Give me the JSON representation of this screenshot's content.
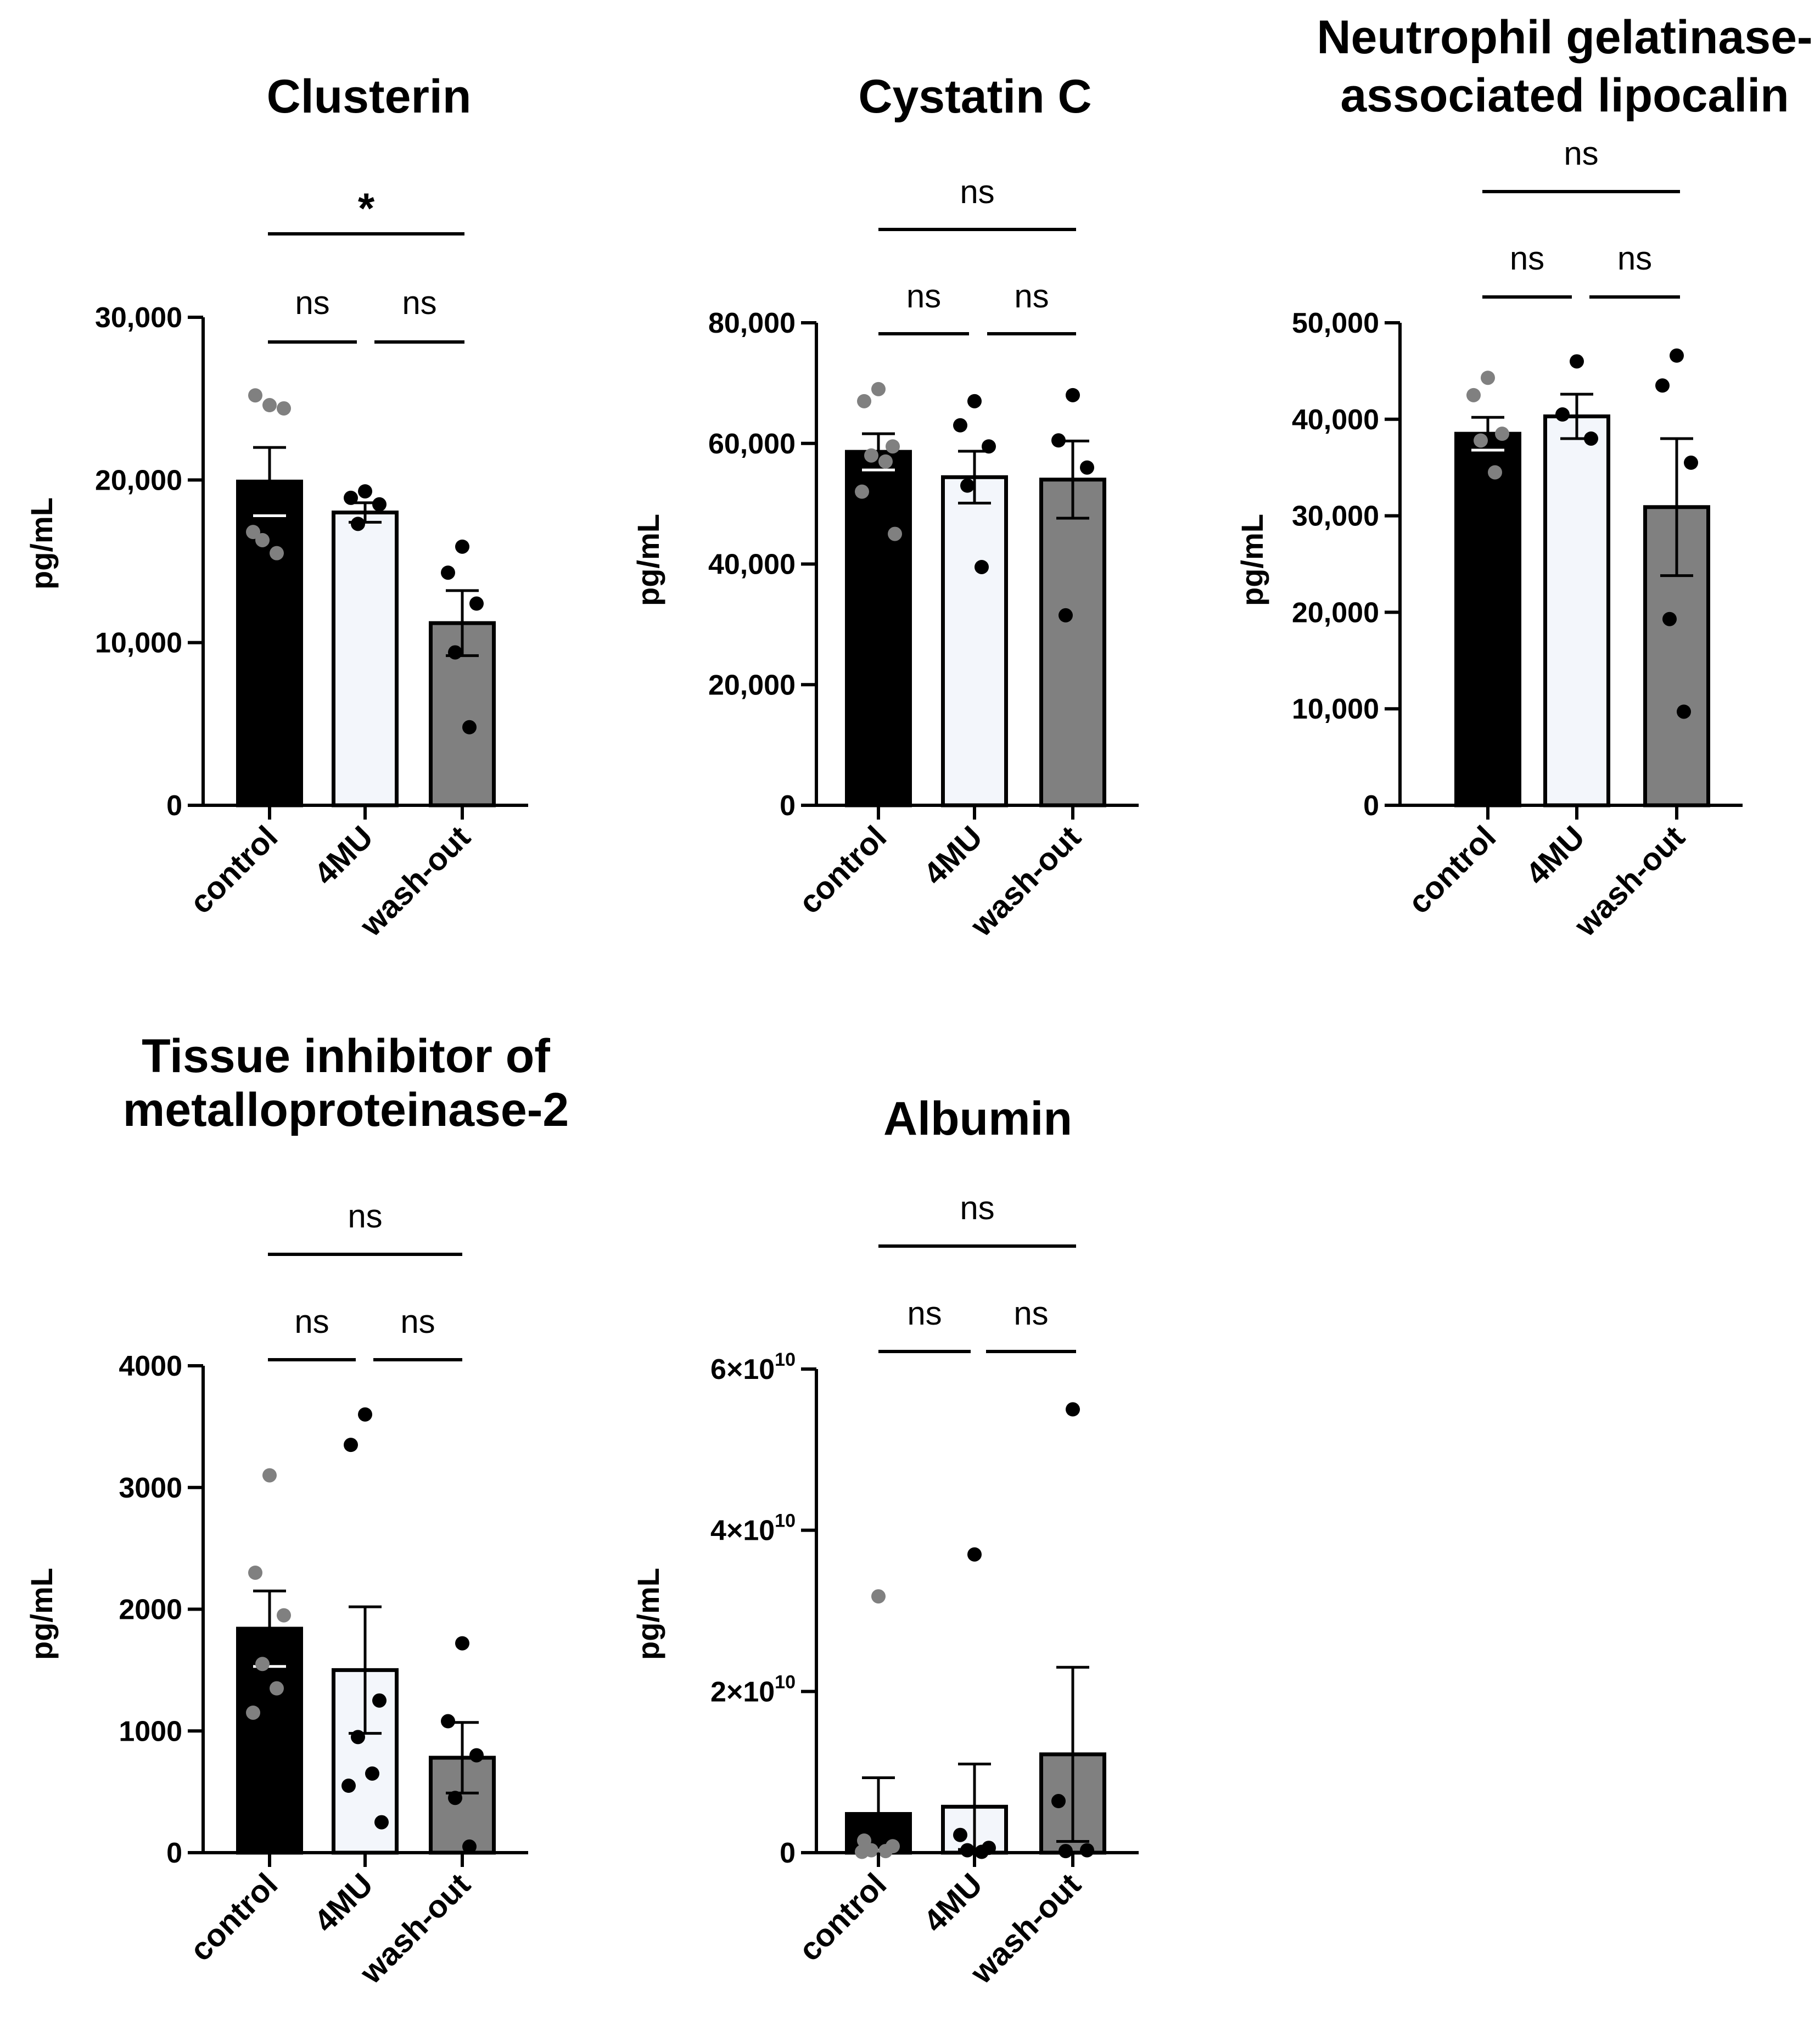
{
  "figure": {
    "colors": {
      "control": "#000000",
      "4MU": "#f3f6fb",
      "wash-out": "#808080",
      "control_points": "#808080",
      "other_points": "#000000"
    }
  },
  "chart_data": [
    {
      "type": "bar",
      "title": "Clusterin",
      "title_lines": [
        "Clusterin"
      ],
      "ylabel": "pg/mL",
      "categories": [
        "control",
        "4MU",
        "wash-out"
      ],
      "ylim": [
        0,
        30000
      ],
      "yticks": [
        0,
        10000,
        20000,
        30000
      ],
      "ytick_labels": [
        "0",
        "10,000",
        "20,000",
        "30,000"
      ],
      "values": [
        19900,
        18000,
        11200
      ],
      "sem": [
        2100,
        600,
        2000
      ],
      "points": [
        [
          24600,
          25200,
          24400,
          16300,
          15500,
          16800
        ],
        [
          19300,
          18900,
          18500,
          17300
        ],
        [
          15900,
          14300,
          12400,
          9400,
          4800
        ]
      ],
      "comparisons": [
        {
          "groups": [
            0,
            1
          ],
          "label": "ns"
        },
        {
          "groups": [
            1,
            2
          ],
          "label": "ns"
        },
        {
          "groups": [
            0,
            2
          ],
          "label": "*"
        }
      ]
    },
    {
      "type": "bar",
      "title": "Cystatin C",
      "title_lines": [
        "Cystatin C"
      ],
      "ylabel": "pg/mL",
      "categories": [
        "control",
        "4MU",
        "wash-out"
      ],
      "ylim": [
        0,
        80000
      ],
      "yticks": [
        0,
        20000,
        40000,
        60000,
        80000
      ],
      "ytick_labels": [
        "0",
        "20,000",
        "40,000",
        "60,000",
        "80,000"
      ],
      "values": [
        58600,
        54400,
        54000
      ],
      "sem": [
        3000,
        4300,
        6400
      ],
      "points": [
        [
          69000,
          67000,
          59500,
          58000,
          57000,
          52000,
          45000
        ],
        [
          67000,
          63000,
          59500,
          53000,
          39500
        ],
        [
          68000,
          60500,
          56000,
          31500
        ]
      ],
      "comparisons": [
        {
          "groups": [
            0,
            1
          ],
          "label": "ns"
        },
        {
          "groups": [
            1,
            2
          ],
          "label": "ns"
        },
        {
          "groups": [
            0,
            2
          ],
          "label": "ns"
        }
      ]
    },
    {
      "type": "bar",
      "title": "Neutrophil gelatinase-associated lipocalin",
      "title_lines": [
        "Neutrophil gelatinase-",
        "associated lipocalin"
      ],
      "ylabel": "pg/mL",
      "categories": [
        "control",
        "4MU",
        "wash-out"
      ],
      "ylim": [
        0,
        50000
      ],
      "yticks": [
        0,
        10000,
        20000,
        30000,
        40000,
        50000
      ],
      "ytick_labels": [
        "0",
        "10,000",
        "20,000",
        "30,000",
        "40,000",
        "50,000"
      ],
      "values": [
        38500,
        40300,
        30900
      ],
      "sem": [
        1700,
        2300,
        7100
      ],
      "points": [
        [
          44300,
          42500,
          38500,
          37800,
          34500
        ],
        [
          46000,
          40500,
          38000
        ],
        [
          46600,
          43500,
          35500,
          19300,
          9700
        ]
      ],
      "comparisons": [
        {
          "groups": [
            0,
            1
          ],
          "label": "ns"
        },
        {
          "groups": [
            1,
            2
          ],
          "label": "ns"
        },
        {
          "groups": [
            0,
            2
          ],
          "label": "ns"
        }
      ]
    },
    {
      "type": "bar",
      "title": "Tissue inhibitor of metalloproteinase-2",
      "title_lines": [
        "Tissue inhibitor of",
        "metalloproteinase-2"
      ],
      "ylabel": "pg/mL",
      "categories": [
        "control",
        "4MU",
        "wash-out"
      ],
      "ylim": [
        0,
        4000
      ],
      "yticks": [
        0,
        1000,
        2000,
        3000,
        4000
      ],
      "ytick_labels": [
        "0",
        "1000",
        "2000",
        "3000",
        "4000"
      ],
      "values": [
        1840,
        1500,
        780
      ],
      "sem": [
        310,
        520,
        290
      ],
      "points": [
        [
          3100,
          2300,
          1950,
          1550,
          1350,
          1150
        ],
        [
          3600,
          3350,
          1250,
          950,
          650,
          550,
          250
        ],
        [
          1720,
          1080,
          800,
          450,
          50
        ]
      ],
      "comparisons": [
        {
          "groups": [
            0,
            1
          ],
          "label": "ns"
        },
        {
          "groups": [
            1,
            2
          ],
          "label": "ns"
        },
        {
          "groups": [
            0,
            2
          ],
          "label": "ns"
        }
      ]
    },
    {
      "type": "bar",
      "title": "Albumin",
      "title_lines": [
        "Albumin"
      ],
      "ylabel": "pg/mL",
      "categories": [
        "control",
        "4MU",
        "wash-out"
      ],
      "ylim": [
        0,
        60000000000
      ],
      "yticks": [
        0,
        20000000000,
        40000000000,
        60000000000
      ],
      "ytick_labels": [
        "0",
        "2×10",
        "4×10",
        "6×10"
      ],
      "ytick_exponents": [
        "",
        "10",
        "10",
        "10"
      ],
      "values": [
        4800000000,
        5700000000,
        12200000000
      ],
      "sem": [
        4500000000,
        5300000000,
        10800000000
      ],
      "points": [
        [
          31800000000,
          1500000000,
          800000000,
          300000000,
          200000000,
          100000000
        ],
        [
          37000000000,
          2200000000,
          600000000,
          300000000,
          100000000
        ],
        [
          55000000000,
          6400000000,
          300000000,
          200000000
        ]
      ],
      "comparisons": [
        {
          "groups": [
            0,
            1
          ],
          "label": "ns"
        },
        {
          "groups": [
            1,
            2
          ],
          "label": "ns"
        },
        {
          "groups": [
            0,
            2
          ],
          "label": "ns"
        }
      ]
    }
  ]
}
